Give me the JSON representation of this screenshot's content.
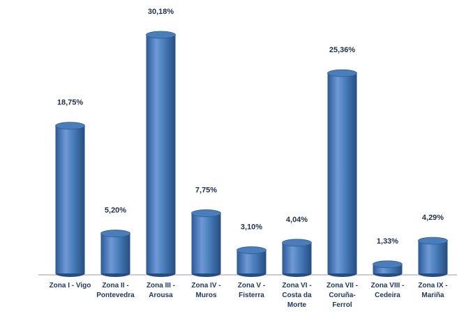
{
  "chart_data": {
    "type": "bar",
    "categories": [
      "Zona I - Vigo",
      "Zona II - Pontevedra",
      "Zona III - Arousa",
      "Zona IV - Muros",
      "Zona V - Fisterra",
      "Zona VI - Costa da Morte",
      "Zona VII - Coruña-Ferrol",
      "Zona VIII - Cedeira",
      "Zona IX - Mariña"
    ],
    "values": [
      18.75,
      5.2,
      30.18,
      7.75,
      3.1,
      4.04,
      25.36,
      1.33,
      4.29
    ],
    "value_labels": [
      "18,75%",
      "5,20%",
      "30,18%",
      "7,75%",
      "3,10%",
      "4,04%",
      "25,36%",
      "1,33%",
      "4,29%"
    ],
    "color": "#4a7ebb"
  }
}
